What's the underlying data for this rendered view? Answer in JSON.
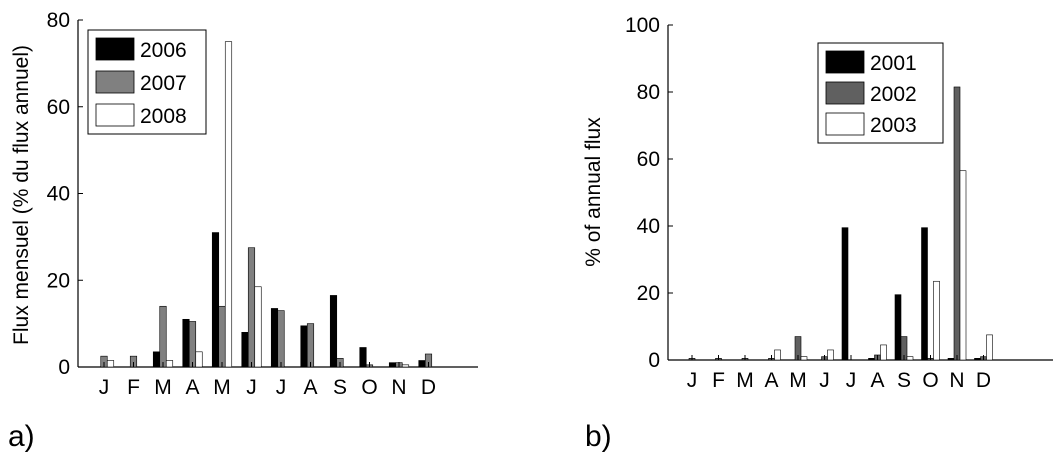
{
  "chart_data": [
    {
      "type": "bar",
      "panel_label": "a)",
      "ylabel": "Flux mensuel (% du flux annuel)",
      "xlabel": "",
      "categories": [
        "J",
        "F",
        "M",
        "A",
        "M",
        "J",
        "J",
        "A",
        "S",
        "O",
        "N",
        "D"
      ],
      "ylim": [
        0,
        80
      ],
      "yticks": [
        "0",
        "20",
        "40",
        "60",
        "80"
      ],
      "legend_position": "top-left",
      "grid": false,
      "series": [
        {
          "name": "2006",
          "color": "#000000",
          "values": [
            0,
            0,
            3.5,
            11,
            31,
            8,
            13.5,
            9.5,
            16.5,
            4.5,
            1,
            1.5
          ]
        },
        {
          "name": "2007",
          "color": "#808080",
          "values": [
            2.5,
            2.5,
            14,
            10.5,
            14,
            27.5,
            13,
            10,
            2,
            0.5,
            1,
            3
          ]
        },
        {
          "name": "2008",
          "color": "#ffffff",
          "values": [
            1.5,
            0,
            1.5,
            3.5,
            75,
            18.5,
            0,
            0,
            0,
            0,
            0.5,
            0
          ]
        }
      ]
    },
    {
      "type": "bar",
      "panel_label": "b)",
      "ylabel": "% of annual flux",
      "xlabel": "",
      "categories": [
        "J",
        "F",
        "M",
        "A",
        "M",
        "J",
        "J",
        "A",
        "S",
        "O",
        "N",
        "D"
      ],
      "ylim": [
        0,
        100
      ],
      "yticks": [
        "0",
        "20",
        "40",
        "60",
        "80",
        "100"
      ],
      "legend_position": "top-right",
      "grid": false,
      "series": [
        {
          "name": "2001",
          "color": "#000000",
          "values": [
            0,
            0,
            0,
            0,
            0,
            0,
            39.5,
            0.5,
            19.5,
            39.5,
            0.5,
            0.5
          ]
        },
        {
          "name": "2002",
          "color": "#606060",
          "values": [
            0.5,
            0.5,
            0.5,
            0.5,
            7,
            1,
            0,
            1.5,
            7,
            0.5,
            81.5,
            1
          ]
        },
        {
          "name": "2003",
          "color": "#ffffff",
          "values": [
            0,
            0,
            0,
            3,
            1,
            3,
            0,
            4.5,
            1,
            23.5,
            56.5,
            7.5
          ]
        }
      ]
    }
  ]
}
